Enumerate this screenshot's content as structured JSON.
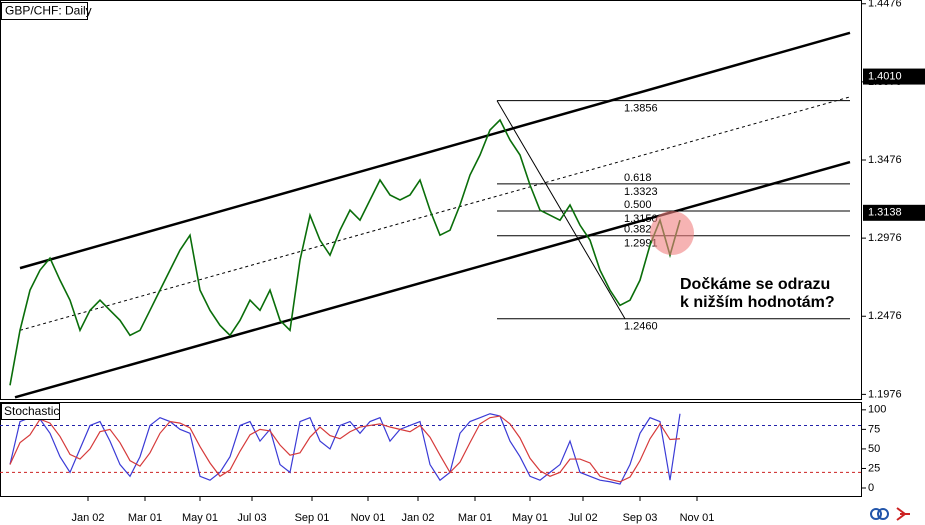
{
  "chart_data": [
    {
      "type": "line",
      "title": "GBP/CHF: Daily",
      "color": "#0a6e0a",
      "values": [
        1.2034,
        1.2386,
        1.2643,
        1.2771,
        1.2848,
        1.2707,
        1.2579,
        1.2386,
        1.2514,
        1.2579,
        1.2514,
        1.245,
        1.2354,
        1.2386,
        1.2514,
        1.2643,
        1.2771,
        1.2899,
        1.2995,
        1.2643,
        1.2514,
        1.2418,
        1.2354,
        1.245,
        1.2579,
        1.2514,
        1.2643,
        1.245,
        1.2386,
        1.2835,
        1.3123,
        1.2963,
        1.2867,
        1.3027,
        1.3155,
        1.3091,
        1.322,
        1.3348,
        1.3252,
        1.322,
        1.3252,
        1.3348,
        1.3155,
        1.2995,
        1.3027,
        1.3188,
        1.338,
        1.3508,
        1.3668,
        1.3732,
        1.3604,
        1.3508,
        1.3316,
        1.3155,
        1.3123,
        1.3091,
        1.3188,
        1.3059,
        1.2963,
        1.2771,
        1.2643,
        1.2546,
        1.2579,
        1.2707,
        1.2931,
        1.3091,
        1.2867,
        1.3091
      ],
      "xlim": [
        -1,
        85.2
      ],
      "ylim": [
        1.194,
        1.45
      ],
      "yticks": [
        1.4476,
        1.3976,
        1.3476,
        1.2976,
        1.2476,
        1.1976
      ],
      "price_markers": [
        {
          "value": 1.401,
          "label": "1.4010"
        },
        {
          "value": 1.3138,
          "label": "1.3138"
        }
      ],
      "channels": [
        {
          "x": [
            1,
            84
          ],
          "y": [
            1.2784,
            1.429
          ],
          "dashed": false
        },
        {
          "x": [
            0.5,
            84
          ],
          "y": [
            1.1957,
            1.3463
          ],
          "dashed": false
        },
        {
          "x": [
            1,
            84
          ],
          "y": [
            1.2386,
            1.388
          ],
          "dashed": true
        }
      ],
      "fib_x": [
        48.7,
        84
      ],
      "fib_trend_x": [
        48.7,
        61.5
      ],
      "fib_levels": [
        {
          "value": 1.3856,
          "label": "1.3856"
        },
        {
          "ratio": "0.618",
          "value": 1.3323,
          "label": "1.3323"
        },
        {
          "ratio": "0.500",
          "value": 1.315,
          "label": "1.3150"
        },
        {
          "ratio": "0.382",
          "value": 1.2991,
          "label": "1.2991"
        },
        {
          "value": 1.246,
          "label": "1.2460"
        }
      ],
      "annotation": [
        "Dočkáme se odrazu",
        "k nižším hodnotám?"
      ]
    },
    {
      "type": "line",
      "title": "Stochastic",
      "series": [
        {
          "color": "#3b3bd6",
          "values": [
            30,
            85,
            90,
            88,
            70,
            40,
            20,
            50,
            80,
            85,
            60,
            30,
            15,
            40,
            80,
            90,
            85,
            75,
            70,
            15,
            10,
            20,
            40,
            80,
            85,
            60,
            75,
            30,
            20,
            85,
            90,
            60,
            50,
            80,
            85,
            70,
            85,
            90,
            60,
            75,
            80,
            85,
            30,
            10,
            20,
            70,
            85,
            90,
            95,
            92,
            60,
            40,
            15,
            10,
            20,
            30,
            60,
            20,
            15,
            10,
            8,
            5,
            30,
            70,
            90,
            85,
            10,
            95
          ]
        },
        {
          "color": "#d63b3b",
          "values": [
            30,
            58,
            68,
            88,
            83,
            66,
            43,
            37,
            50,
            72,
            75,
            58,
            35,
            28,
            45,
            70,
            85,
            83,
            77,
            53,
            32,
            15,
            23,
            47,
            68,
            75,
            73,
            55,
            42,
            45,
            65,
            78,
            67,
            63,
            72,
            78,
            80,
            82,
            78,
            75,
            72,
            80,
            65,
            42,
            20,
            33,
            58,
            82,
            90,
            92,
            82,
            64,
            38,
            22,
            15,
            20,
            37,
            37,
            32,
            15,
            11,
            8,
            14,
            35,
            63,
            82,
            62,
            63
          ]
        }
      ],
      "levels": [
        {
          "value": 80,
          "color": "#2222aa"
        },
        {
          "value": 20,
          "color": "#cc2222"
        }
      ],
      "xlim": [
        -1,
        85.2
      ],
      "ylim": [
        -11.5,
        110
      ],
      "yticks": [
        100,
        75,
        50,
        25,
        0
      ],
      "xticks": [
        {
          "value": 7.8,
          "label": "Jan 02"
        },
        {
          "value": 13.5,
          "label": "Mar 01"
        },
        {
          "value": 19,
          "label": "May 01"
        },
        {
          "value": 24.2,
          "label": "Jul 03"
        },
        {
          "value": 30.2,
          "label": "Sep 01"
        },
        {
          "value": 35.8,
          "label": "Nov 01"
        },
        {
          "value": 40.8,
          "label": "Jan 02"
        },
        {
          "value": 46.5,
          "label": "Mar 01"
        },
        {
          "value": 52,
          "label": "May 01"
        },
        {
          "value": 57.3,
          "label": "Jul 02"
        },
        {
          "value": 63,
          "label": "Sep 03"
        },
        {
          "value": 68.7,
          "label": "Nov 01"
        }
      ]
    }
  ]
}
